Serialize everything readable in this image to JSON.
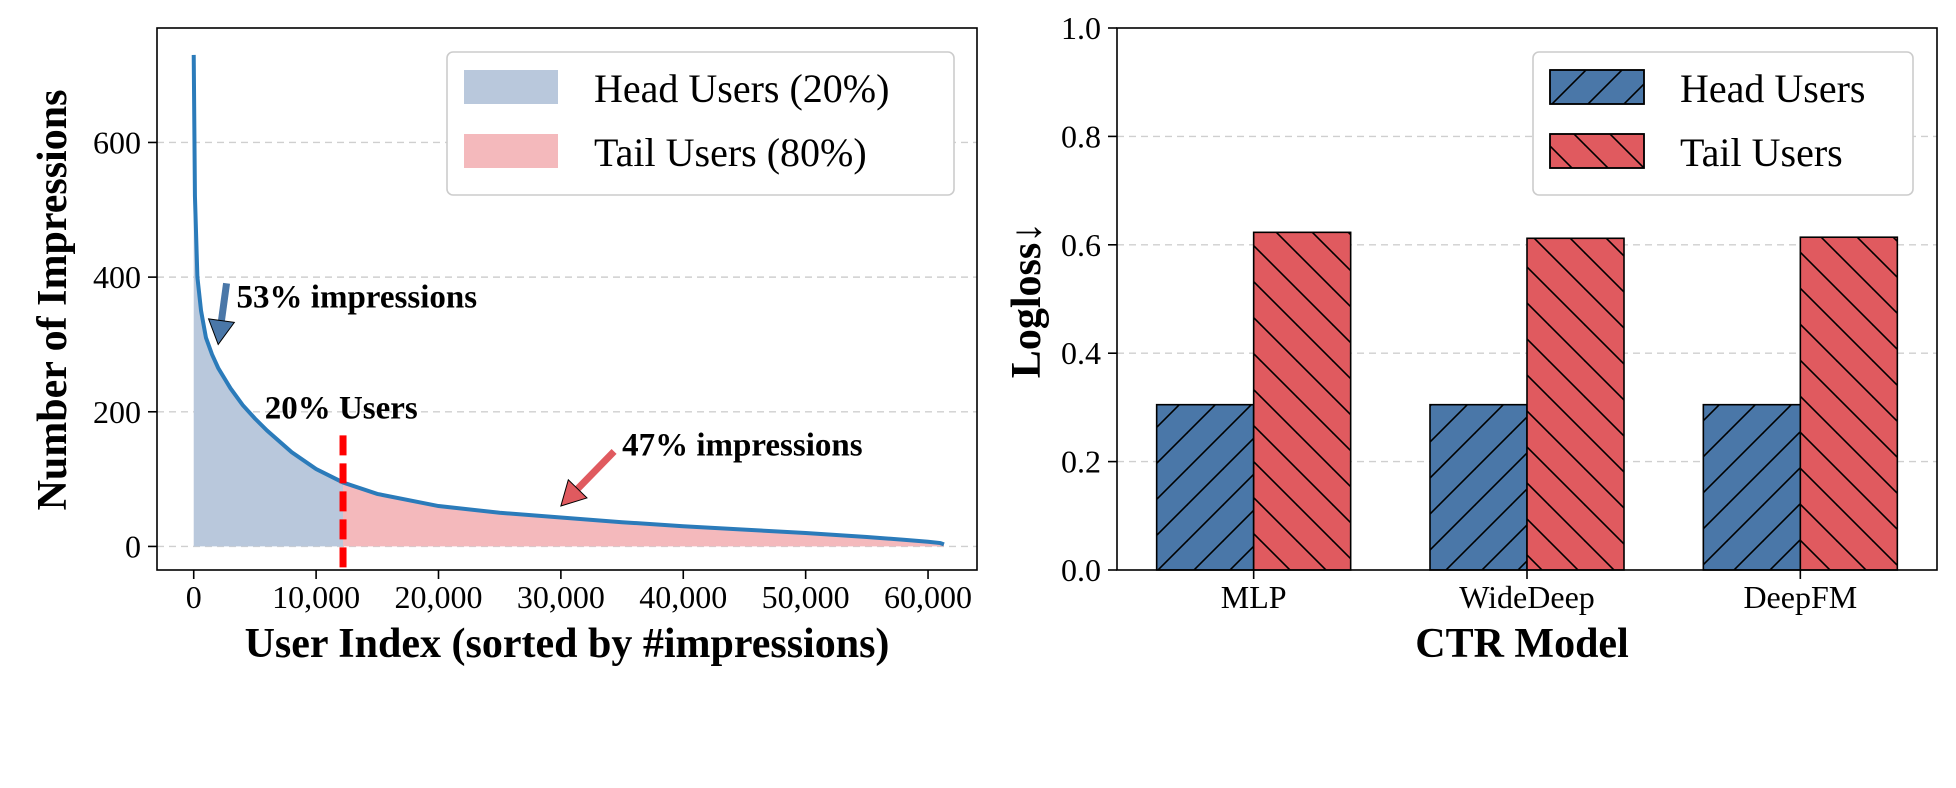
{
  "colors": {
    "head": "#4a77a8",
    "tail": "#e05a5f",
    "head_fill": "#b9c8dc",
    "tail_fill": "#f4b9bc",
    "curve": "#2b7bba",
    "marker": "#ff0000"
  },
  "chart_data": [
    {
      "type": "area",
      "xlabel": "User Index (sorted by #impressions)",
      "ylabel": "Number of Impressions",
      "xlim": [
        -3000,
        64000
      ],
      "ylim": [
        -35,
        770
      ],
      "xticks": [
        0,
        10000,
        20000,
        30000,
        40000,
        50000,
        60000
      ],
      "xtick_labels": [
        "0",
        "10,000",
        "20,000",
        "30,000",
        "40,000",
        "50,000",
        "60,000"
      ],
      "yticks": [
        0,
        200,
        400,
        600
      ],
      "ytick_labels": [
        "0",
        "200",
        "400",
        "600"
      ],
      "grid": "y-dashed",
      "legend_position": "top-right",
      "split_x": 12200,
      "x": [
        0,
        100,
        300,
        600,
        1000,
        1500,
        2000,
        3000,
        4000,
        5000,
        6000,
        8000,
        10000,
        12200,
        15000,
        20000,
        25000,
        30000,
        35000,
        40000,
        45000,
        50000,
        55000,
        58000,
        60000,
        61000,
        61300
      ],
      "y": [
        730,
        520,
        400,
        350,
        310,
        285,
        265,
        235,
        210,
        190,
        172,
        140,
        115,
        95,
        78,
        60,
        50,
        43,
        36,
        30,
        25,
        20,
        14,
        10,
        7,
        5,
        3
      ],
      "series": [
        {
          "name": "Head Users (20%)",
          "x_range": [
            0,
            12200
          ]
        },
        {
          "name": "Tail Users (80%)",
          "x_range": [
            12200,
            61300
          ]
        }
      ],
      "annotations": [
        {
          "text": "53% impressions",
          "x": 3500,
          "y": 370,
          "arrow_to": [
            2000,
            300
          ],
          "color": "head"
        },
        {
          "text": "20% Users",
          "x": 5800,
          "y": 205,
          "color": "marker"
        },
        {
          "text": "47% impressions",
          "x": 35000,
          "y": 150,
          "arrow_to": [
            30000,
            60
          ],
          "color": "tail"
        }
      ]
    },
    {
      "type": "bar",
      "xlabel": "CTR Model",
      "ylabel": "Logloss↓",
      "categories": [
        "MLP",
        "WideDeep",
        "DeepFM"
      ],
      "ylim": [
        0.0,
        1.0
      ],
      "yticks": [
        0.0,
        0.2,
        0.4,
        0.6,
        0.8,
        1.0
      ],
      "ytick_labels": [
        "0.0",
        "0.2",
        "0.4",
        "0.6",
        "0.8",
        "1.0"
      ],
      "grid": "y-dashed",
      "legend_position": "top-right",
      "series": [
        {
          "name": "Head Users",
          "values": [
            0.305,
            0.305,
            0.305
          ],
          "hatch": "/"
        },
        {
          "name": "Tail Users",
          "values": [
            0.623,
            0.612,
            0.614
          ],
          "hatch": "\\"
        }
      ]
    }
  ]
}
